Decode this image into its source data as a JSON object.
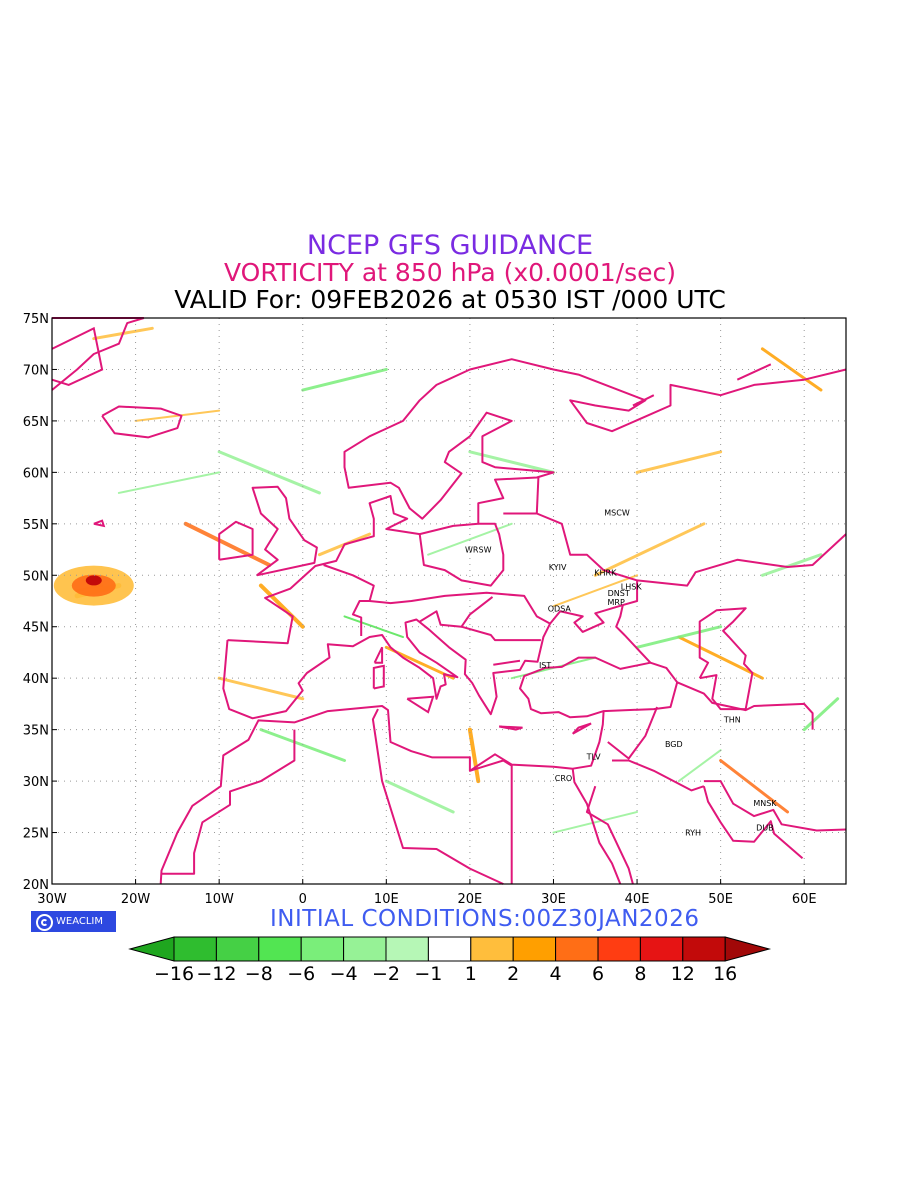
{
  "header": {
    "line1": "NCEP GFS GUIDANCE",
    "line2": "VORTICITY at 850 hPa (x0.0001/sec)",
    "line3": "VALID For: 09FEB2026 at 0530 IST /000 UTC"
  },
  "footer": {
    "brand": "WEACLIM",
    "initial_conditions": "INITIAL CONDITIONS:00Z30JAN2026"
  },
  "colors": {
    "title1": "#7a2be2",
    "title2": "#e0177a",
    "title3": "#000000",
    "init": "#3f5cf0",
    "borders": "#e0177a",
    "brand_bg": "#2d48e0"
  },
  "axes": {
    "lon_labels": [
      "30W",
      "20W",
      "10W",
      "0",
      "10E",
      "20E",
      "30E",
      "40E",
      "50E",
      "60E"
    ],
    "lat_labels": [
      "75N",
      "70N",
      "65N",
      "60N",
      "55N",
      "50N",
      "45N",
      "40N",
      "35N",
      "30N",
      "25N",
      "20N"
    ]
  },
  "cities": [
    {
      "name": "MSCW",
      "lon": 37.6,
      "lat": 55.8
    },
    {
      "name": "WRSW",
      "lon": 21.0,
      "lat": 52.2
    },
    {
      "name": "KYIV",
      "lon": 30.5,
      "lat": 50.5
    },
    {
      "name": "KHRK",
      "lon": 36.2,
      "lat": 50.0
    },
    {
      "name": "LHSK",
      "lon": 39.3,
      "lat": 48.6
    },
    {
      "name": "DNST",
      "lon": 37.8,
      "lat": 48.0
    },
    {
      "name": "MRP",
      "lon": 37.5,
      "lat": 47.1
    },
    {
      "name": "ODSA",
      "lon": 30.7,
      "lat": 46.5
    },
    {
      "name": "IST",
      "lon": 29.0,
      "lat": 41.0
    },
    {
      "name": "THN",
      "lon": 51.4,
      "lat": 35.7
    },
    {
      "name": "BGD",
      "lon": 44.4,
      "lat": 33.3
    },
    {
      "name": "TLV",
      "lon": 34.8,
      "lat": 32.1
    },
    {
      "name": "CRO",
      "lon": 31.2,
      "lat": 30.0
    },
    {
      "name": "MNSK",
      "lon": 55.3,
      "lat": 27.6
    },
    {
      "name": "DUB",
      "lon": 55.3,
      "lat": 25.2
    },
    {
      "name": "RYH",
      "lon": 46.7,
      "lat": 24.7
    }
  ],
  "legend": {
    "labels": [
      "-16",
      "-12",
      "-8",
      "-6",
      "-4",
      "-2",
      "-1",
      "1",
      "2",
      "4",
      "6",
      "8",
      "12",
      "16"
    ],
    "colors": [
      "#1fa61f",
      "#2fbd2f",
      "#45d045",
      "#52e552",
      "#7aee7a",
      "#96f296",
      "#b6f7b6",
      "#ffffff",
      "#ffbe3c",
      "#ff9f00",
      "#ff6e16",
      "#ff3d12",
      "#e61414",
      "#c20a0a",
      "#a10808"
    ]
  }
}
